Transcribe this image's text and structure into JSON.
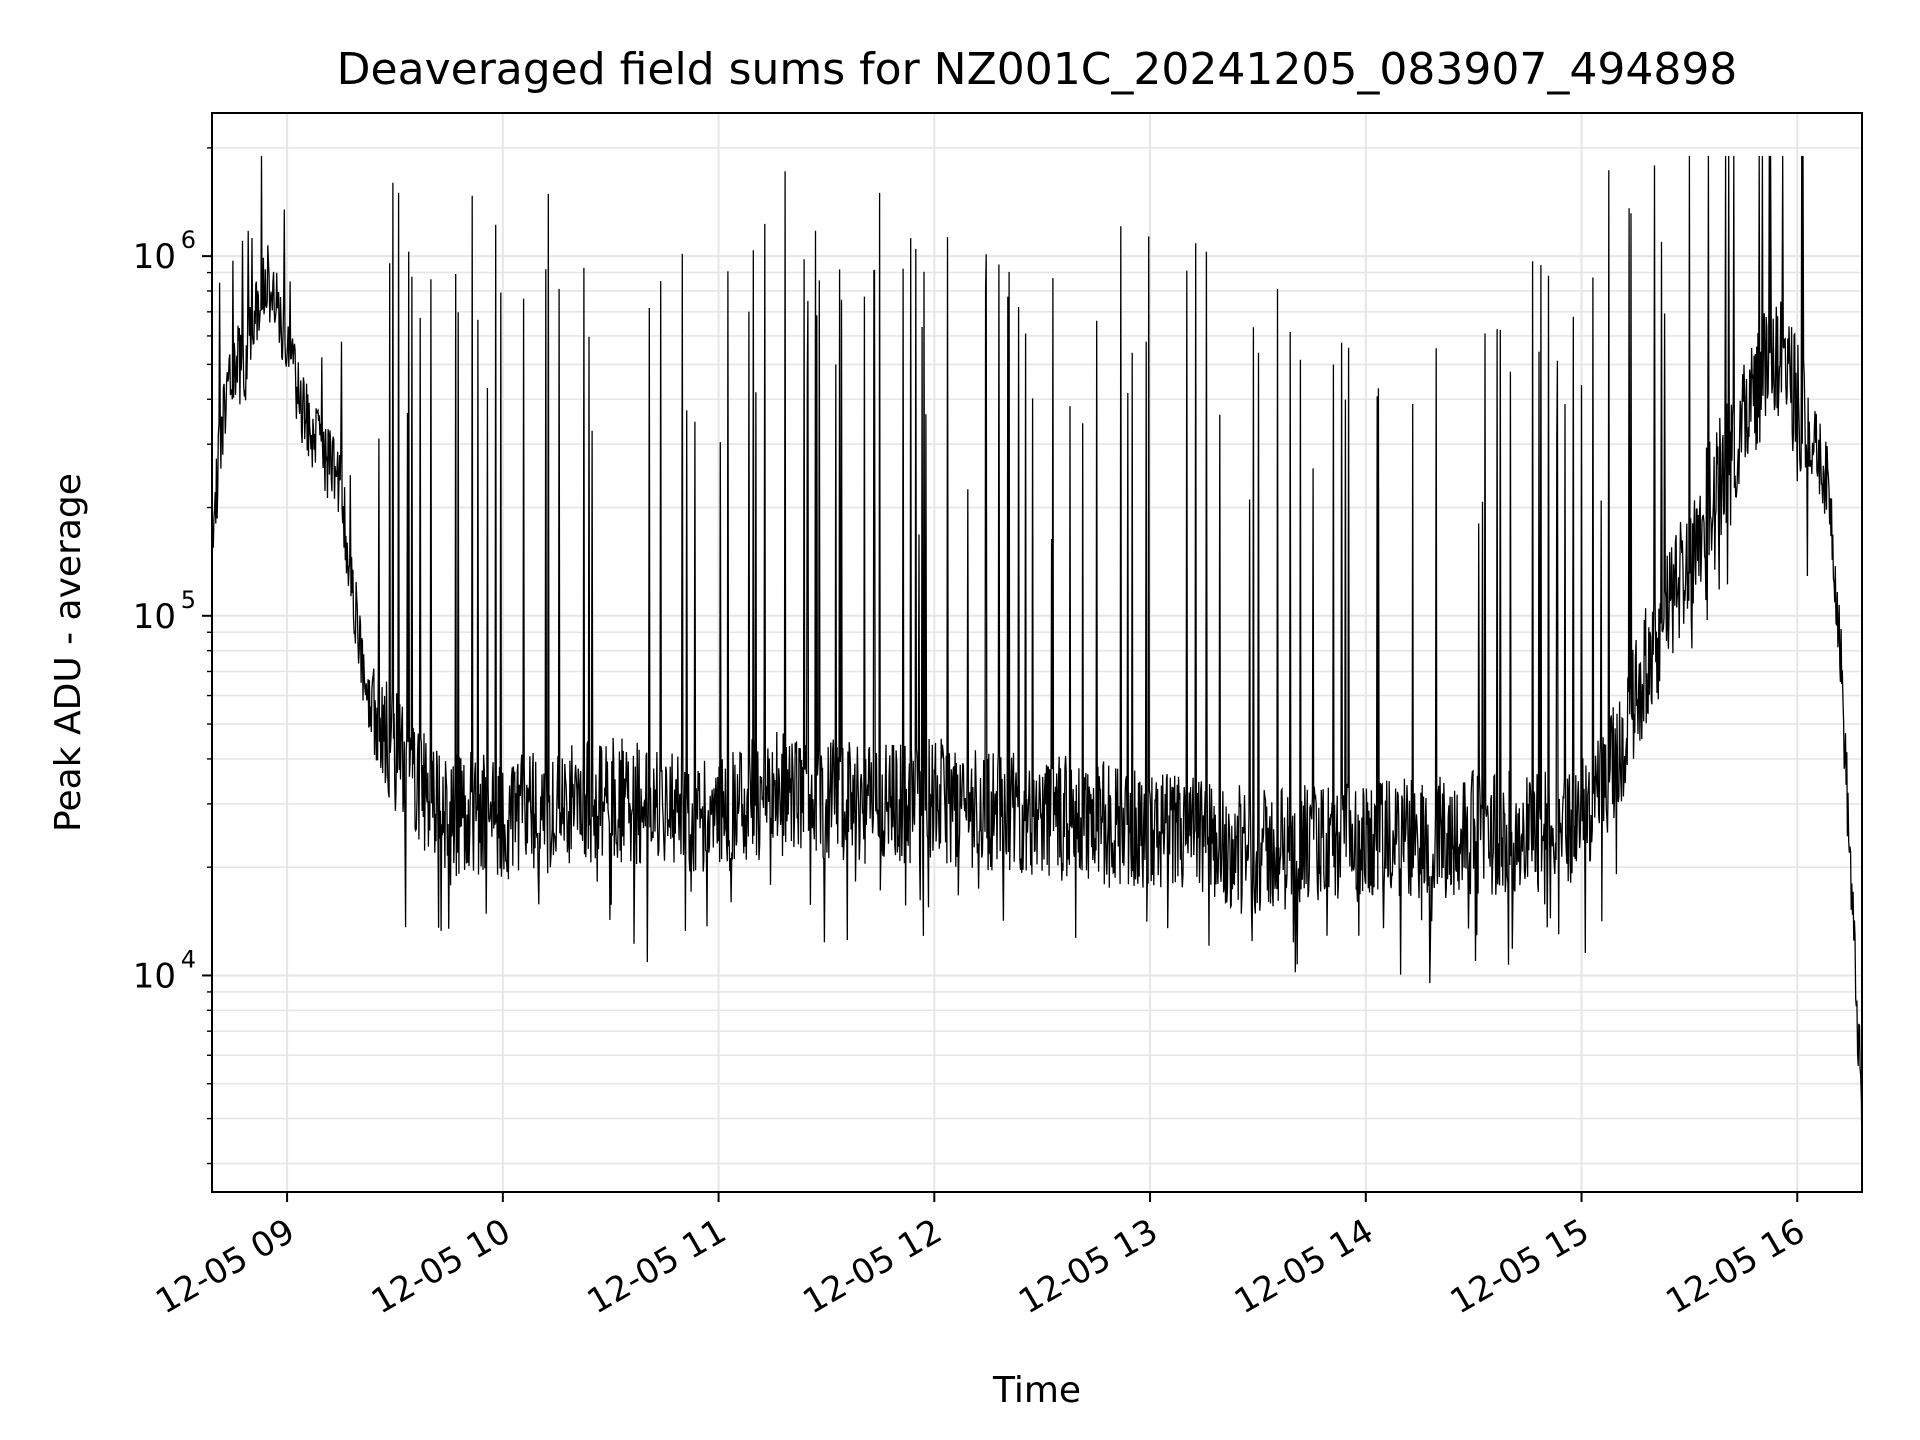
{
  "chart_data": {
    "type": "line",
    "title": "Deaveraged field sums for NZ001C_20241205_083907_494898",
    "xlabel": "Time",
    "ylabel": "Peak ADU - average",
    "xscale": "time",
    "yscale": "log",
    "xlim": [
      "2024-12-05T08:39:07",
      "2024-12-05T16:18:00"
    ],
    "ylim": [
      2500,
      2500000
    ],
    "grid": true,
    "line_color": "#000000",
    "grid_color": "#e6e6e6",
    "x_tick_labels": [
      "12-05 09",
      "12-05 10",
      "12-05 11",
      "12-05 12",
      "12-05 13",
      "12-05 14",
      "12-05 15",
      "12-05 16"
    ],
    "y_tick_labels": [
      {
        "base": "10",
        "exp": "4",
        "value": 10000
      },
      {
        "base": "10",
        "exp": "5",
        "value": 100000
      },
      {
        "base": "10",
        "exp": "6",
        "value": 1000000
      }
    ],
    "series": [
      {
        "x": [
          "2024-12-05T08:39:07",
          "2024-12-05T08:42:00",
          "2024-12-05T08:45:00",
          "2024-12-05T08:48:00",
          "2024-12-05T08:51:00",
          "2024-12-05T08:54:00",
          "2024-12-05T08:57:00",
          "2024-12-05T09:00:00",
          "2024-12-05T09:03:00",
          "2024-12-05T09:06:00",
          "2024-12-05T09:09:00",
          "2024-12-05T09:12:00",
          "2024-12-05T09:15:00",
          "2024-12-05T09:18:00",
          "2024-12-05T09:21:00",
          "2024-12-05T09:24:00",
          "2024-12-05T09:27:00",
          "2024-12-05T09:30:00",
          "2024-12-05T09:33:00",
          "2024-12-05T09:36:00",
          "2024-12-05T09:39:00",
          "2024-12-05T09:42:00",
          "2024-12-05T09:45:00",
          "2024-12-05T09:48:00",
          "2024-12-05T09:51:00",
          "2024-12-05T09:54:00",
          "2024-12-05T09:57:00",
          "2024-12-05T10:00:00",
          "2024-12-05T10:15:00",
          "2024-12-05T10:30:00",
          "2024-12-05T10:45:00",
          "2024-12-05T11:00:00",
          "2024-12-05T11:15:00",
          "2024-12-05T11:30:00",
          "2024-12-05T11:45:00",
          "2024-12-05T12:00:00",
          "2024-12-05T12:15:00",
          "2024-12-05T12:30:00",
          "2024-12-05T12:45:00",
          "2024-12-05T13:00:00",
          "2024-12-05T13:15:00",
          "2024-12-05T13:30:00",
          "2024-12-05T13:45:00",
          "2024-12-05T14:00:00",
          "2024-12-05T14:15:00",
          "2024-12-05T14:30:00",
          "2024-12-05T14:45:00",
          "2024-12-05T15:00:00",
          "2024-12-05T15:05:00",
          "2024-12-05T15:10:00",
          "2024-12-05T15:15:00",
          "2024-12-05T15:20:00",
          "2024-12-05T15:25:00",
          "2024-12-05T15:30:00",
          "2024-12-05T15:35:00",
          "2024-12-05T15:40:00",
          "2024-12-05T15:45:00",
          "2024-12-05T15:50:00",
          "2024-12-05T15:55:00",
          "2024-12-05T16:00:00",
          "2024-12-05T16:03:00",
          "2024-12-05T16:06:00",
          "2024-12-05T16:09:00",
          "2024-12-05T16:12:00",
          "2024-12-05T16:15:00",
          "2024-12-05T16:18:00"
        ],
        "y": [
          160000,
          350000,
          520000,
          480000,
          700000,
          900000,
          750000,
          600000,
          420000,
          340000,
          300000,
          260000,
          230000,
          120000,
          70000,
          55000,
          48000,
          42000,
          38000,
          35000,
          31000,
          29000,
          27000,
          28000,
          29000,
          28000,
          27000,
          27000,
          29000,
          31000,
          29000,
          28000,
          32000,
          31000,
          30000,
          31000,
          29000,
          28000,
          27000,
          25000,
          24000,
          22000,
          23000,
          23000,
          24000,
          25000,
          25000,
          27000,
          31000,
          40000,
          60000,
          80000,
          110000,
          150000,
          200000,
          260000,
          360000,
          460000,
          520000,
          400000,
          320000,
          280000,
          220000,
          80000,
          18000,
          4000
        ]
      }
    ]
  }
}
